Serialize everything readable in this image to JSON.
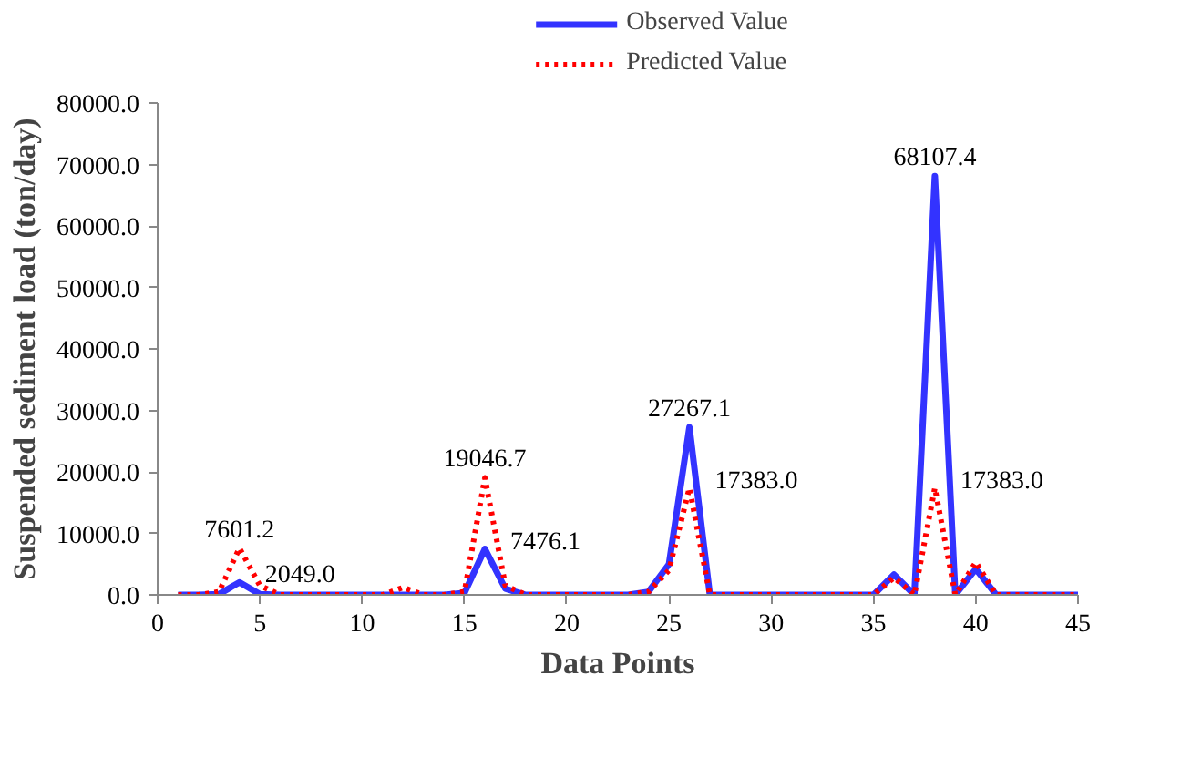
{
  "chart_data": {
    "type": "line",
    "xlabel": "Data Points",
    "ylabel": "Suspended sediment load (ton/day)",
    "x": [
      1,
      2,
      3,
      4,
      5,
      6,
      7,
      8,
      9,
      10,
      11,
      12,
      13,
      14,
      15,
      16,
      17,
      18,
      19,
      20,
      21,
      22,
      23,
      24,
      25,
      26,
      27,
      28,
      29,
      30,
      31,
      32,
      33,
      34,
      35,
      36,
      37,
      38,
      39,
      40,
      41,
      42,
      43,
      44,
      45
    ],
    "series": [
      {
        "name": "Observed Value",
        "color": "#3333ff",
        "line_style": "solid",
        "values": [
          0,
          0,
          100,
          2049.0,
          100,
          0,
          0,
          0,
          0,
          0,
          0,
          0,
          0,
          0,
          300,
          7476.1,
          1000,
          0,
          0,
          0,
          0,
          0,
          0,
          500,
          5000,
          27267.1,
          0,
          0,
          0,
          0,
          0,
          0,
          0,
          0,
          0,
          3300,
          0,
          68107.4,
          0,
          4200,
          0,
          0,
          0,
          0,
          0
        ],
        "value_labels": [
          null,
          null,
          null,
          "2049.0",
          null,
          null,
          null,
          null,
          null,
          null,
          null,
          null,
          null,
          null,
          null,
          "7476.1",
          null,
          null,
          null,
          null,
          null,
          null,
          null,
          null,
          null,
          "27267.1",
          null,
          null,
          null,
          null,
          null,
          null,
          null,
          null,
          null,
          null,
          null,
          "68107.4",
          null,
          null,
          null,
          null,
          null,
          null,
          null
        ]
      },
      {
        "name": "Predicted Value",
        "color": "#ff0000",
        "line_style": "dotted",
        "values": [
          0,
          0,
          500,
          7601.2,
          1500,
          0,
          0,
          0,
          0,
          0,
          0,
          1200,
          0,
          0,
          500,
          19046.7,
          1500,
          0,
          0,
          0,
          0,
          0,
          0,
          500,
          4000,
          17383.0,
          0,
          0,
          0,
          0,
          0,
          0,
          0,
          0,
          0,
          2800,
          0,
          17383.0,
          0,
          5300,
          0,
          0,
          0,
          0,
          0
        ],
        "value_labels": [
          null,
          null,
          null,
          "7601.2",
          null,
          null,
          null,
          null,
          null,
          null,
          null,
          null,
          null,
          null,
          null,
          "19046.7",
          null,
          null,
          null,
          null,
          null,
          null,
          null,
          null,
          null,
          "17383.0",
          null,
          null,
          null,
          null,
          null,
          null,
          null,
          null,
          null,
          null,
          null,
          "17383.0",
          null,
          null,
          null,
          null,
          null,
          null,
          null
        ]
      }
    ],
    "xlim": [
      0,
      45
    ],
    "xticks": [
      0,
      5,
      10,
      15,
      20,
      25,
      30,
      35,
      40,
      45
    ],
    "ylim": [
      0,
      80000
    ],
    "yticks": [
      {
        "value": 0,
        "label": "0.0"
      },
      {
        "value": 10000,
        "label": "10000.0"
      },
      {
        "value": 20000,
        "label": "20000.0"
      },
      {
        "value": 30000,
        "label": "30000.0"
      },
      {
        "value": 40000,
        "label": "40000.0"
      },
      {
        "value": 50000,
        "label": "50000.0"
      },
      {
        "value": 60000,
        "label": "60000.0"
      },
      {
        "value": 70000,
        "label": "70000.0"
      },
      {
        "value": 80000,
        "label": "80000.0"
      }
    ],
    "legend": "top",
    "grid": false
  }
}
